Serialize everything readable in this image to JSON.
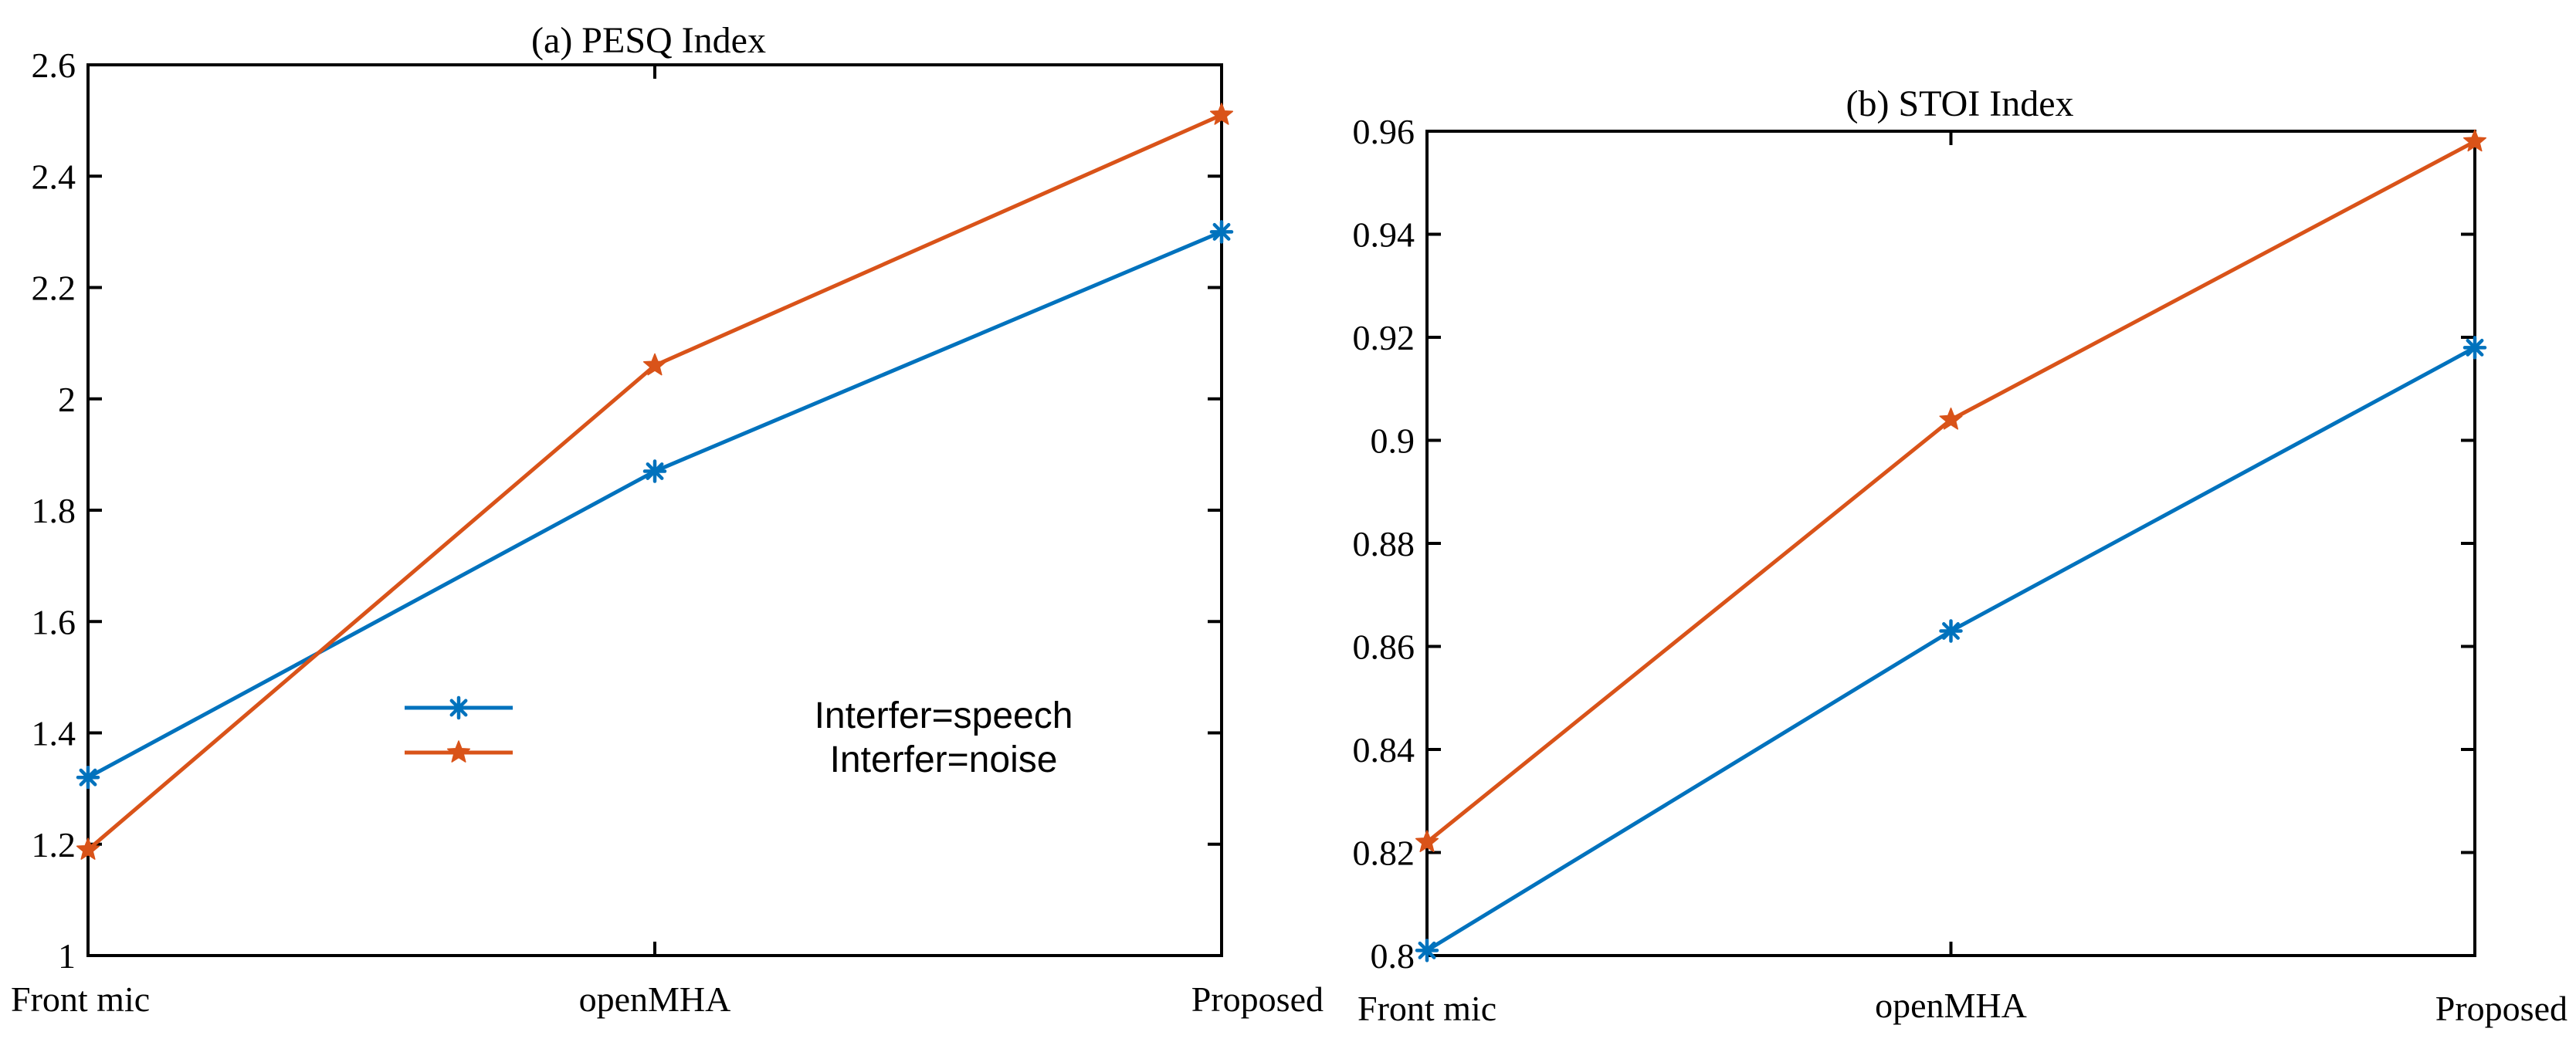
{
  "chart_data": [
    {
      "type": "line",
      "title": "(a) PESQ Index",
      "categories": [
        "Front mic",
        "openMHA",
        "Proposed"
      ],
      "ylim": [
        1,
        2.6
      ],
      "yticks": [
        "1",
        "1.2",
        "1.4",
        "1.6",
        "1.8",
        "2",
        "2.2",
        "2.4",
        "2.6"
      ],
      "series": [
        {
          "name": "Interfer=speech",
          "values": [
            1.32,
            1.87,
            2.3
          ],
          "color": "#0072BD",
          "marker": "asterisk"
        },
        {
          "name": "Interfer=noise",
          "values": [
            1.19,
            2.06,
            2.51
          ],
          "color": "#D95319",
          "marker": "star"
        }
      ],
      "legend": "center"
    },
    {
      "type": "line",
      "title": "(b) STOI Index",
      "categories": [
        "Front mic",
        "openMHA",
        "Proposed"
      ],
      "ylim": [
        0.8,
        0.96
      ],
      "yticks": [
        "0.8",
        "0.82",
        "0.84",
        "0.86",
        "0.88",
        "0.9",
        "0.92",
        "0.94",
        "0.96"
      ],
      "series": [
        {
          "name": "Interfer=speech",
          "values": [
            0.801,
            0.863,
            0.918
          ],
          "color": "#0072BD",
          "marker": "asterisk"
        },
        {
          "name": "Interfer=noise",
          "values": [
            0.822,
            0.904,
            0.958
          ],
          "color": "#D95319",
          "marker": "star"
        }
      ]
    }
  ]
}
